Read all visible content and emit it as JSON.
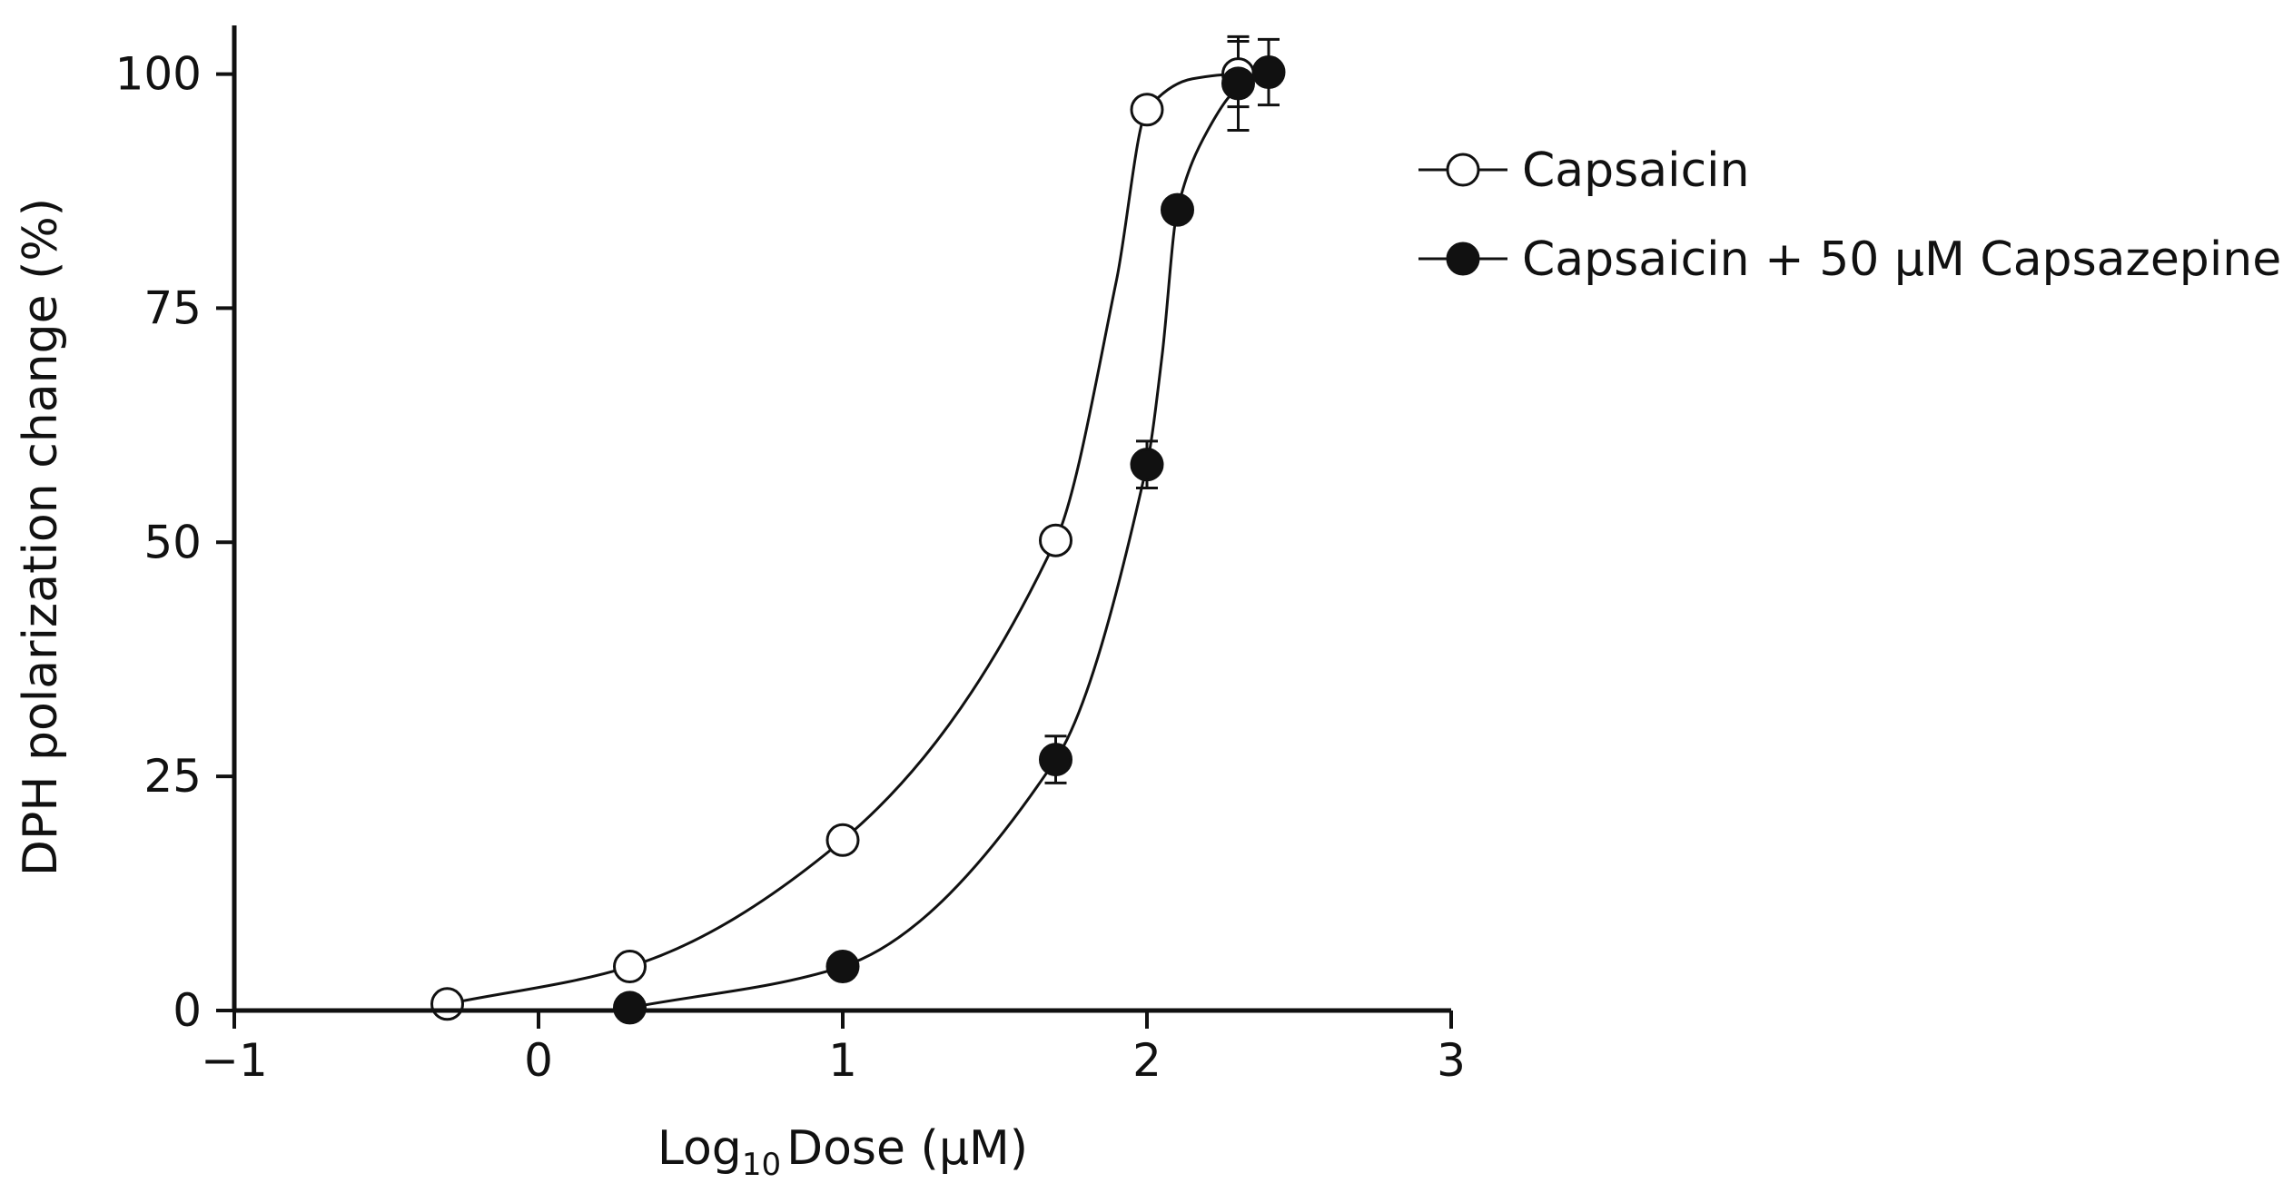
{
  "chart_data": {
    "type": "scatter",
    "title": "",
    "xlabel_prefix": "Log",
    "xlabel_sub": "10",
    "xlabel_suffix": "Dose (µM)",
    "ylabel": "DPH polarization change (%)",
    "xlim": [
      -1,
      3
    ],
    "ylim": [
      0,
      105
    ],
    "xticks": [
      -1,
      0,
      1,
      2,
      3
    ],
    "xtick_labels": [
      "−1",
      "0",
      "1",
      "2",
      "3"
    ],
    "yticks": [
      0,
      25,
      50,
      75,
      100
    ],
    "ytick_labels": [
      "0",
      "25",
      "50",
      "75",
      "100"
    ],
    "grid": false,
    "legend_position": "top-right",
    "series": [
      {
        "name": "Capsaicin",
        "marker": "open-circle",
        "color": "#111111",
        "x": [
          -0.3,
          0.3,
          1.0,
          1.7,
          2.0,
          2.3
        ],
        "y": [
          0.7,
          4.7,
          18.2,
          50.2,
          96.2,
          100.0
        ],
        "yerr": [
          0,
          0,
          0,
          0,
          0,
          3.5
        ],
        "curve_x": [
          -0.3,
          0.3,
          1.0,
          1.7,
          1.9,
          2.0,
          2.15,
          2.3,
          2.4
        ],
        "curve_y": [
          0.7,
          4.7,
          18.2,
          50.2,
          78,
          96.2,
          99.5,
          100.0,
          100.0
        ]
      },
      {
        "name": "Capsaicin + 50 µM Capsazepine",
        "marker": "filled-circle",
        "color": "#111111",
        "x": [
          0.3,
          1.0,
          1.7,
          2.0,
          2.1,
          2.3,
          2.4
        ],
        "y": [
          0.3,
          4.7,
          26.8,
          58.3,
          85.5,
          99.0,
          100.2
        ],
        "yerr": [
          0,
          0,
          2.5,
          2.5,
          0,
          5.0,
          3.5
        ],
        "curve_x": [
          0.3,
          1.0,
          1.7,
          2.0,
          2.05,
          2.1,
          2.2,
          2.3,
          2.4
        ],
        "curve_y": [
          0.3,
          4.7,
          26.8,
          58.3,
          70,
          85.5,
          94,
          98.5,
          100.0
        ]
      }
    ]
  }
}
